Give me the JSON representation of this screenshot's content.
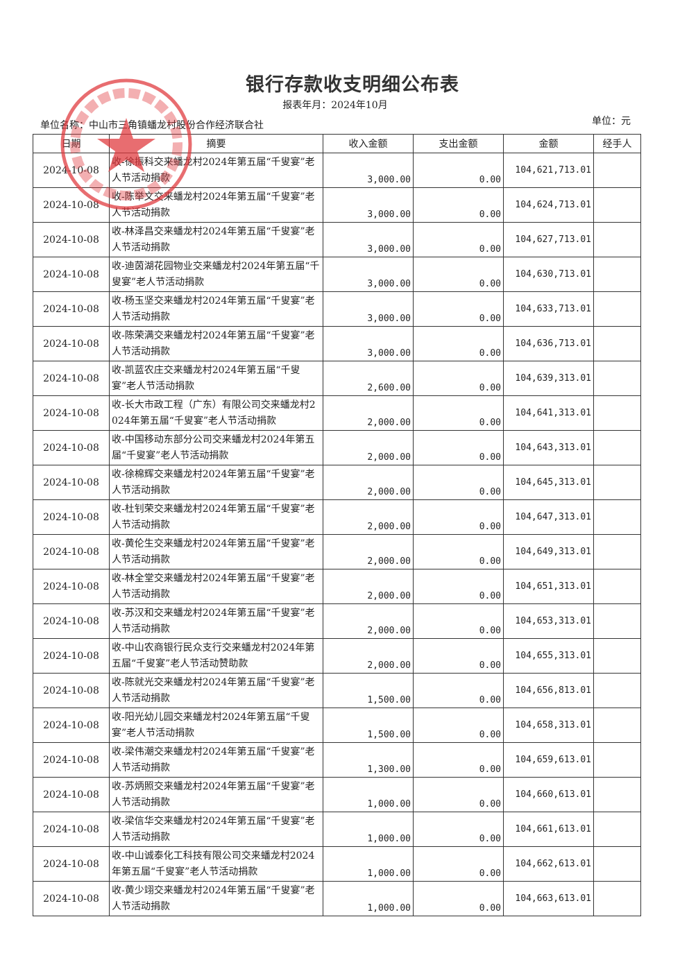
{
  "document": {
    "title": "银行存款收支明细公布表",
    "report_period": "报表年月：2024年10月",
    "unit_name": "单位名称：中山市三角镇蟠龙村股份合作经济联合社",
    "currency_unit": "单位：元",
    "stamp_text": "中山市三角镇蟠龙村股份合作经济联合社",
    "stamp_color": "#e0353a"
  },
  "table": {
    "headers": [
      "日期",
      "摘要",
      "收入金额",
      "支出金额",
      "金额",
      "经手人"
    ],
    "rows": [
      {
        "date": "2024-10-08",
        "summary": "收-徐振科交来蟠龙村2024年第五届“千叟宴”老人节活动捐款",
        "income": "3,000.00",
        "expense": "0.00",
        "balance": "104,621,713.01",
        "handler": ""
      },
      {
        "date": "2024-10-08",
        "summary": "收-陈举文交来蟠龙村2024年第五届“千叟宴”老人节活动捐款",
        "income": "3,000.00",
        "expense": "0.00",
        "balance": "104,624,713.01",
        "handler": ""
      },
      {
        "date": "2024-10-08",
        "summary": "收-林泽昌交来蟠龙村2024年第五届“千叟宴”老人节活动捐款",
        "income": "3,000.00",
        "expense": "0.00",
        "balance": "104,627,713.01",
        "handler": ""
      },
      {
        "date": "2024-10-08",
        "summary": "收-迪茵湖花园物业交来蟠龙村2024年第五届“千叟宴”老人节活动捐款",
        "income": "3,000.00",
        "expense": "0.00",
        "balance": "104,630,713.01",
        "handler": ""
      },
      {
        "date": "2024-10-08",
        "summary": "收-杨玉坚交来蟠龙村2024年第五届“千叟宴”老人节活动捐款",
        "income": "3,000.00",
        "expense": "0.00",
        "balance": "104,633,713.01",
        "handler": ""
      },
      {
        "date": "2024-10-08",
        "summary": "收-陈荣满交来蟠龙村2024年第五届“千叟宴”老人节活动捐款",
        "income": "3,000.00",
        "expense": "0.00",
        "balance": "104,636,713.01",
        "handler": ""
      },
      {
        "date": "2024-10-08",
        "summary": "收-凯蓝农庄交来蟠龙村2024年第五届“千叟宴”老人节活动捐款",
        "income": "2,600.00",
        "expense": "0.00",
        "balance": "104,639,313.01",
        "handler": ""
      },
      {
        "date": "2024-10-08",
        "summary": "收-长大市政工程（广东）有限公司交来蟠龙村2024年第五届“千叟宴”老人节活动捐款",
        "income": "2,000.00",
        "expense": "0.00",
        "balance": "104,641,313.01",
        "handler": ""
      },
      {
        "date": "2024-10-08",
        "summary": "收-中国移动东部分公司交来蟠龙村2024年第五届“千叟宴”老人节活动捐款",
        "income": "2,000.00",
        "expense": "0.00",
        "balance": "104,643,313.01",
        "handler": ""
      },
      {
        "date": "2024-10-08",
        "summary": "收-徐棉辉交来蟠龙村2024年第五届“千叟宴”老人节活动捐款",
        "income": "2,000.00",
        "expense": "0.00",
        "balance": "104,645,313.01",
        "handler": ""
      },
      {
        "date": "2024-10-08",
        "summary": "收-杜钊荣交来蟠龙村2024年第五届“千叟宴”老人节活动捐款",
        "income": "2,000.00",
        "expense": "0.00",
        "balance": "104,647,313.01",
        "handler": ""
      },
      {
        "date": "2024-10-08",
        "summary": "收-黄伦生交来蟠龙村2024年第五届“千叟宴”老人节活动捐款",
        "income": "2,000.00",
        "expense": "0.00",
        "balance": "104,649,313.01",
        "handler": ""
      },
      {
        "date": "2024-10-08",
        "summary": "收-林全堂交来蟠龙村2024年第五届“千叟宴”老人节活动捐款",
        "income": "2,000.00",
        "expense": "0.00",
        "balance": "104,651,313.01",
        "handler": ""
      },
      {
        "date": "2024-10-08",
        "summary": "收-苏汉和交来蟠龙村2024年第五届“千叟宴”老人节活动捐款",
        "income": "2,000.00",
        "expense": "0.00",
        "balance": "104,653,313.01",
        "handler": ""
      },
      {
        "date": "2024-10-08",
        "summary": "收-中山农商银行民众支行交来蟠龙村2024年第五届“千叟宴”老人节活动赞助款",
        "income": "2,000.00",
        "expense": "0.00",
        "balance": "104,655,313.01",
        "handler": ""
      },
      {
        "date": "2024-10-08",
        "summary": "收-陈就光交来蟠龙村2024年第五届“千叟宴”老人节活动捐款",
        "income": "1,500.00",
        "expense": "0.00",
        "balance": "104,656,813.01",
        "handler": ""
      },
      {
        "date": "2024-10-08",
        "summary": "收-阳光幼儿园交来蟠龙村2024年第五届“千叟宴”老人节活动捐款",
        "income": "1,500.00",
        "expense": "0.00",
        "balance": "104,658,313.01",
        "handler": ""
      },
      {
        "date": "2024-10-08",
        "summary": "收-梁伟潮交来蟠龙村2024年第五届“千叟宴”老人节活动捐款",
        "income": "1,300.00",
        "expense": "0.00",
        "balance": "104,659,613.01",
        "handler": ""
      },
      {
        "date": "2024-10-08",
        "summary": "收-苏炳照交来蟠龙村2024年第五届“千叟宴”老人节活动捐款",
        "income": "1,000.00",
        "expense": "0.00",
        "balance": "104,660,613.01",
        "handler": ""
      },
      {
        "date": "2024-10-08",
        "summary": "收-梁信华交来蟠龙村2024年第五届“千叟宴”老人节活动捐款",
        "income": "1,000.00",
        "expense": "0.00",
        "balance": "104,661,613.01",
        "handler": ""
      },
      {
        "date": "2024-10-08",
        "summary": "收-中山诚泰化工科技有限公司交来蟠龙村2024年第五届“千叟宴”老人节活动捐款",
        "income": "1,000.00",
        "expense": "0.00",
        "balance": "104,662,613.01",
        "handler": ""
      },
      {
        "date": "2024-10-08",
        "summary": "收-黄少翊交来蟠龙村2024年第五届“千叟宴”老人节活动捐款",
        "income": "1,000.00",
        "expense": "0.00",
        "balance": "104,663,613.01",
        "handler": ""
      }
    ]
  }
}
